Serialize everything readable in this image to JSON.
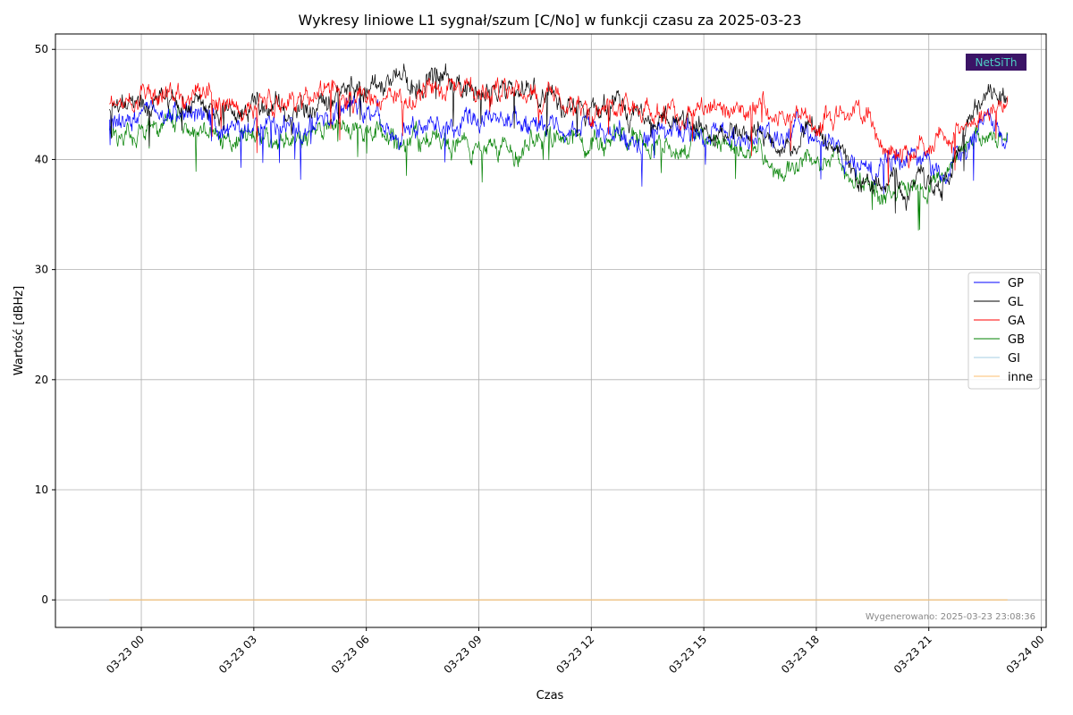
{
  "chart_data": {
    "type": "line",
    "title": "Wykresy liniowe L1 sygnał/szum [C/No] w funkcji czasu za 2025-03-23",
    "xlabel": "Czas",
    "ylabel": "Wartość [dBHz]",
    "ylim": [
      -2.5,
      51.4
    ],
    "xlim_hours": [
      -2.29,
      24.13
    ],
    "yticks": [
      0,
      10,
      20,
      30,
      40,
      50
    ],
    "xticks": [
      {
        "hour": 0,
        "label": "03-23 00"
      },
      {
        "hour": 3,
        "label": "03-23 03"
      },
      {
        "hour": 6,
        "label": "03-23 06"
      },
      {
        "hour": 9,
        "label": "03-23 09"
      },
      {
        "hour": 12,
        "label": "03-23 12"
      },
      {
        "hour": 15,
        "label": "03-23 15"
      },
      {
        "hour": 18,
        "label": "03-23 18"
      },
      {
        "hour": 21,
        "label": "03-23 21"
      },
      {
        "hour": 24,
        "label": "03-24 00"
      }
    ],
    "grid": true,
    "legend_position": "center-right",
    "series": [
      {
        "name": "GP",
        "color": "#0000ff",
        "x": [
          -0.85,
          0,
          1,
          2,
          3,
          4,
          5,
          6,
          7,
          8,
          9,
          10,
          11,
          12,
          13,
          14,
          15,
          16,
          17,
          18,
          19,
          19.5,
          20,
          20.5,
          21,
          21.5,
          22,
          22.5,
          23.1
        ],
        "y": [
          43.5,
          44,
          44.5,
          43,
          43,
          43,
          43.5,
          44.5,
          42,
          42.5,
          44,
          43.5,
          43,
          43,
          42,
          42.5,
          42.5,
          42,
          42,
          43,
          39.5,
          38.5,
          39,
          40.5,
          39.5,
          39,
          41.5,
          43.5,
          42.5
        ]
      },
      {
        "name": "GL",
        "color": "#000000",
        "x": [
          -0.85,
          0,
          1,
          2,
          3,
          4,
          5,
          5.8,
          6,
          7,
          7.5,
          8,
          9,
          10,
          11,
          12,
          12.8,
          13,
          14,
          15,
          16,
          17,
          18,
          19,
          19.5,
          20,
          20.5,
          21,
          21.5,
          22,
          22.5,
          23.1
        ],
        "y": [
          44.5,
          45.5,
          46,
          44,
          44.5,
          44,
          45,
          47,
          46.5,
          47.5,
          46.5,
          47.5,
          46,
          46.5,
          46,
          44,
          45.5,
          44,
          43.5,
          42,
          43,
          40.5,
          43,
          39,
          38,
          38.5,
          37.5,
          37.5,
          38,
          43.5,
          46,
          45.5
        ]
      },
      {
        "name": "GA",
        "color": "#ff0000",
        "x": [
          -0.85,
          0,
          1,
          2,
          3,
          4,
          5,
          6,
          7,
          7.5,
          8,
          9,
          10,
          11,
          12,
          13,
          14,
          15,
          16,
          16.5,
          17,
          18,
          19,
          19.5,
          20,
          20.5,
          21,
          21.5,
          22,
          22.5,
          23.1
        ],
        "y": [
          45,
          45.5,
          45.5,
          45.5,
          45,
          45,
          46,
          45,
          45,
          46.5,
          46,
          46,
          46,
          45,
          44,
          44.5,
          43.5,
          44.5,
          45,
          45.5,
          43.5,
          43.5,
          44.5,
          43,
          41,
          40,
          42,
          41.5,
          42.5,
          44,
          45
        ]
      },
      {
        "name": "GB",
        "color": "#008000",
        "x": [
          -0.85,
          0,
          1,
          2,
          3,
          4,
          5,
          6,
          7,
          8,
          9,
          10,
          11,
          12,
          13,
          14,
          15,
          16,
          16.5,
          17,
          18,
          18.5,
          19,
          19.5,
          20,
          20.5,
          21,
          21.5,
          22,
          22.5,
          23.1
        ],
        "y": [
          42.5,
          42.5,
          43,
          41.5,
          41.5,
          41.5,
          43,
          42.5,
          42,
          42,
          41,
          41,
          41.5,
          42,
          42.5,
          41,
          41.5,
          41,
          40.5,
          39,
          39.5,
          40.5,
          38.5,
          37,
          36.5,
          37,
          37,
          38.5,
          41.5,
          42.5,
          42
        ]
      },
      {
        "name": "GI",
        "color": "#a6cee3",
        "x": [
          -0.85,
          23.1
        ],
        "y": [
          0,
          0
        ]
      },
      {
        "name": "inne",
        "color": "#fdbf6f",
        "x": [
          -0.85,
          23.1
        ],
        "y": [
          0,
          0
        ]
      }
    ]
  },
  "footer": {
    "generated": "Wygenerowano: 2025-03-23 23:08:36"
  },
  "logo": {
    "text": "NetSiTh"
  }
}
